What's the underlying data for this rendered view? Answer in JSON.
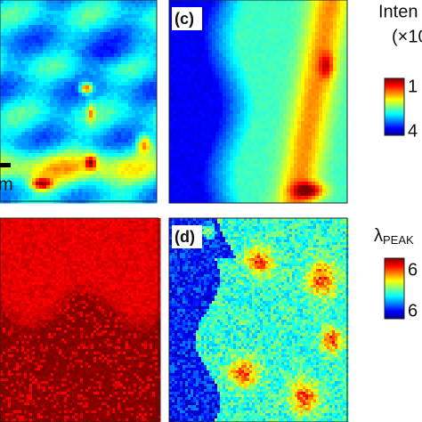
{
  "panels": [
    {
      "label": "(c)"
    },
    {
      "label": "(d)"
    }
  ],
  "colorbars": [
    {
      "title": "Inten",
      "unit": "(×10",
      "max_label": "1",
      "min_label": "4"
    },
    {
      "title": "λ",
      "title_sub": "PEAK",
      "max_label": "6",
      "min_label": "6"
    }
  ],
  "scale_bar": {
    "label": "m"
  }
}
